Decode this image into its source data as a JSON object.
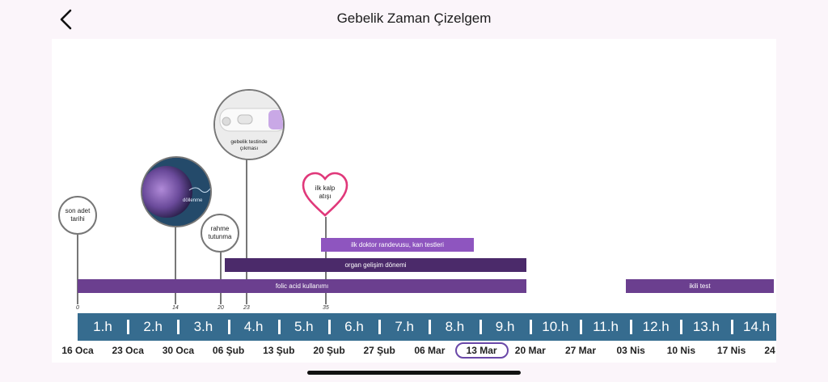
{
  "header": {
    "title": "Gebelik Zaman Çizelgem",
    "back_icon": "chevron-left-icon"
  },
  "milestones": {
    "lmp": "son adet tarihi",
    "fertilization": "döllenme",
    "implantation": "rahme tutunma",
    "pregnancy_test": "gebelik testinde çıkması",
    "heartbeat": "ilk kalp atışı"
  },
  "bars": {
    "doctor": "ilk doktor randevusu, kan testleri",
    "organ": "organ gelişim dönemi",
    "folic": "folic acid kullanımı",
    "dual": "ikili test"
  },
  "day_ticks": [
    "0",
    "14",
    "20",
    "23",
    "35"
  ],
  "weeks": [
    "1.h",
    "2.h",
    "3.h",
    "4.h",
    "5.h",
    "6.h",
    "7.h",
    "8.h",
    "9.h",
    "10.h",
    "11.h",
    "12.h",
    "13.h",
    "14.h"
  ],
  "dates": [
    "16 Oca",
    "23 Oca",
    "30 Oca",
    "06 Şub",
    "13 Şub",
    "20 Şub",
    "27 Şub",
    "06 Mar",
    "13 Mar",
    "20 Mar",
    "27 Mar",
    "03 Nis",
    "10 Nis",
    "17 Nis",
    "24"
  ],
  "current_date_index": 8,
  "colors": {
    "week_strip": "#366c8f",
    "heart": "#e0387a",
    "accent": "#6a48a8"
  }
}
